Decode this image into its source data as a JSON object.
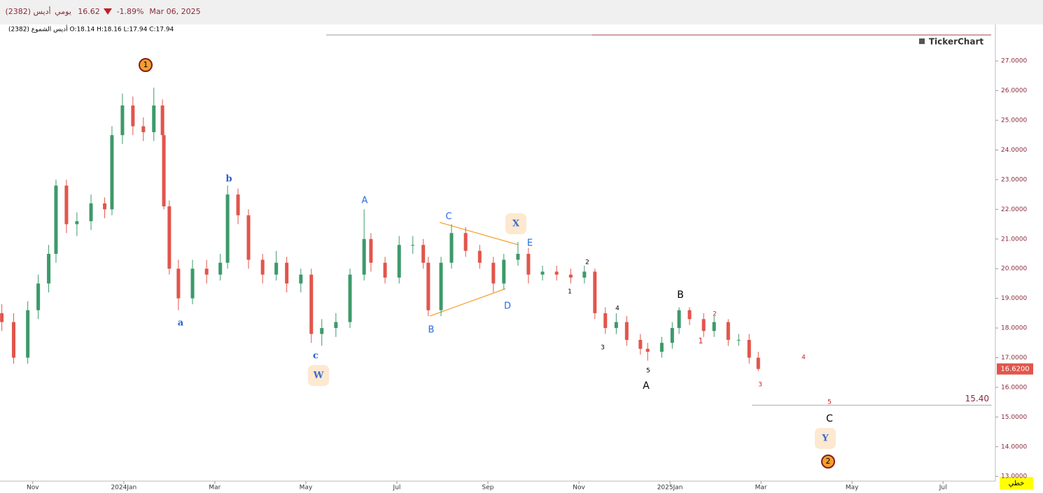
{
  "header": {
    "symbol": "أديس (2382)",
    "period": "يومي",
    "price": "16.62",
    "change": "-1.89%",
    "date": "Mar 06, 2025",
    "ohlc_line": "أديس الشموع (2382) O:18.14 H:18.16 L:17.94 C:17.94",
    "brand": "TickerChart",
    "chart_style": "خطي"
  },
  "chart_data": {
    "type": "candlestick",
    "x": [
      -0.68,
      -0.42,
      -0.11,
      0.12,
      0.35,
      0.51,
      0.74,
      0.97,
      1.28,
      1.58,
      1.74,
      1.97,
      2.2,
      2.43,
      2.66,
      2.85,
      2.88,
      3.0,
      3.2,
      3.51,
      3.82,
      4.12,
      4.28,
      4.51,
      4.74,
      5.05,
      5.35,
      5.58,
      5.89,
      6.12,
      6.35,
      6.66,
      6.97,
      7.28,
      7.43,
      7.74,
      8.05,
      8.35,
      8.58,
      8.69,
      8.97,
      9.2,
      9.51,
      9.82,
      10.12,
      10.35,
      10.66,
      10.89,
      11.2,
      11.51,
      11.82,
      12.12,
      12.35,
      12.58,
      12.82,
      13.05,
      13.35,
      13.51,
      13.82,
      14.05,
      14.2,
      14.43,
      14.74,
      14.97,
      15.28,
      15.51,
      15.74,
      15.94
    ],
    "open": [
      18.5,
      18.2,
      17.0,
      18.6,
      19.5,
      20.5,
      22.8,
      21.5,
      21.6,
      22.2,
      22.0,
      24.5,
      25.5,
      24.8,
      24.6,
      25.5,
      24.5,
      22.1,
      20.0,
      19.0,
      20.0,
      19.8,
      20.2,
      22.5,
      21.8,
      20.3,
      19.8,
      20.2,
      19.5,
      19.8,
      17.8,
      18.0,
      18.2,
      19.8,
      21.0,
      20.2,
      19.7,
      20.8,
      20.8,
      20.2,
      18.6,
      20.2,
      21.2,
      20.6,
      20.2,
      19.5,
      20.3,
      20.5,
      19.8,
      19.9,
      19.8,
      19.7,
      19.9,
      18.5,
      18.0,
      18.2,
      17.6,
      17.3,
      17.2,
      17.5,
      18.0,
      18.6,
      18.3,
      17.9,
      18.2,
      17.6,
      17.6,
      17.0
    ],
    "high": [
      18.8,
      18.5,
      18.9,
      19.8,
      20.8,
      23.0,
      23.0,
      21.9,
      22.5,
      22.4,
      24.8,
      25.9,
      25.8,
      25.1,
      26.1,
      25.7,
      24.6,
      22.3,
      20.3,
      20.3,
      20.3,
      20.5,
      22.8,
      22.7,
      22.0,
      20.5,
      20.6,
      20.4,
      20.0,
      20.0,
      18.3,
      18.5,
      20.0,
      22.0,
      21.2,
      20.4,
      21.1,
      21.1,
      21.0,
      20.4,
      20.4,
      21.5,
      21.4,
      20.8,
      20.4,
      20.5,
      20.9,
      20.7,
      20.1,
      20.1,
      20.0,
      20.1,
      20.0,
      18.7,
      18.5,
      18.4,
      17.8,
      17.5,
      17.7,
      18.2,
      18.7,
      18.7,
      18.5,
      18.4,
      18.3,
      17.8,
      17.8,
      17.2
    ],
    "low": [
      17.9,
      16.8,
      16.8,
      18.3,
      19.2,
      20.2,
      21.2,
      21.1,
      21.3,
      21.7,
      21.8,
      24.2,
      24.5,
      24.3,
      24.3,
      24.3,
      22.0,
      19.8,
      18.6,
      18.8,
      19.5,
      19.6,
      20.0,
      21.5,
      20.0,
      19.5,
      19.6,
      19.2,
      19.2,
      17.5,
      17.4,
      17.7,
      18.0,
      19.6,
      19.9,
      19.5,
      19.5,
      20.5,
      20.0,
      18.4,
      18.4,
      20.0,
      20.4,
      20.0,
      19.2,
      19.3,
      20.1,
      19.5,
      19.6,
      19.6,
      19.5,
      19.5,
      18.3,
      17.8,
      17.8,
      17.4,
      17.1,
      16.9,
      17.0,
      17.3,
      17.8,
      18.1,
      17.7,
      17.7,
      17.4,
      17.4,
      16.8,
      16.55
    ],
    "close": [
      18.2,
      17.0,
      18.6,
      19.5,
      20.5,
      22.8,
      21.5,
      21.6,
      22.2,
      22.0,
      24.5,
      25.5,
      24.8,
      24.6,
      25.5,
      24.5,
      22.1,
      20.0,
      19.0,
      20.0,
      19.8,
      20.2,
      22.5,
      21.8,
      20.3,
      19.8,
      20.2,
      19.5,
      19.8,
      17.8,
      18.0,
      18.2,
      19.8,
      21.0,
      20.2,
      19.7,
      20.8,
      20.8,
      20.2,
      18.6,
      20.2,
      21.2,
      20.6,
      20.2,
      19.5,
      20.3,
      20.5,
      19.8,
      19.9,
      19.8,
      19.7,
      19.9,
      18.5,
      18.0,
      18.2,
      17.6,
      17.3,
      17.2,
      17.5,
      18.0,
      18.6,
      18.3,
      17.9,
      18.2,
      17.6,
      17.6,
      17.0,
      16.62
    ],
    "up_color": "#3d9a6a",
    "down_color": "#e2554b",
    "xlim": [
      -0.72,
      21.15
    ],
    "xticks": [
      {
        "value": 0,
        "label": "Nov"
      },
      {
        "value": 2,
        "label": "2024Jan"
      },
      {
        "value": 4,
        "label": "Mar"
      },
      {
        "value": 6,
        "label": "May"
      },
      {
        "value": 8,
        "label": "Jul"
      },
      {
        "value": 10,
        "label": "Sep"
      },
      {
        "value": 12,
        "label": "Nov"
      },
      {
        "value": 14,
        "label": "2025Jan"
      },
      {
        "value": 16,
        "label": "Mar"
      },
      {
        "value": 18,
        "label": "May"
      },
      {
        "value": 20,
        "label": "Jul"
      }
    ],
    "ylim": [
      12.84,
      28.23
    ],
    "yticks": [
      {
        "value": 13,
        "label": "13.0000"
      },
      {
        "value": 14,
        "label": "14.0000"
      },
      {
        "value": 15,
        "label": "15.0000"
      },
      {
        "value": 16,
        "label": "16.0000"
      },
      {
        "value": 17,
        "label": "17.0000"
      },
      {
        "value": 18,
        "label": "18.0000"
      },
      {
        "value": 19,
        "label": "19.0000"
      },
      {
        "value": 20,
        "label": "20.0000"
      },
      {
        "value": 21,
        "label": "21.0000"
      },
      {
        "value": 22,
        "label": "22.0000"
      },
      {
        "value": 23,
        "label": "23.0000"
      },
      {
        "value": 24,
        "label": "24.0000"
      },
      {
        "value": 25,
        "label": "25.0000"
      },
      {
        "value": 26,
        "label": "26.0000"
      },
      {
        "value": 27,
        "label": "27.0000"
      }
    ],
    "last_price": {
      "value": 16.62,
      "label": "16.6200"
    },
    "target_level": {
      "value": 15.4,
      "label": "15.40"
    },
    "annotations": [
      {
        "text": "1",
        "style": "circle"
      },
      {
        "text": "2",
        "style": "circle"
      },
      {
        "text": "a",
        "style": "serif"
      },
      {
        "text": "b",
        "style": "serif"
      },
      {
        "text": "c",
        "style": "serif"
      },
      {
        "text": "A",
        "style": "blue"
      },
      {
        "text": "B",
        "style": "blue"
      },
      {
        "text": "C",
        "style": "blue"
      },
      {
        "text": "D",
        "style": "blue"
      },
      {
        "text": "E",
        "style": "blue"
      },
      {
        "text": "W",
        "style": "box"
      },
      {
        "text": "X",
        "style": "box"
      },
      {
        "text": "Y",
        "style": "box"
      },
      {
        "text": "A",
        "style": "big"
      },
      {
        "text": "B",
        "style": "big"
      },
      {
        "text": "C",
        "style": "big"
      },
      {
        "text": "1",
        "style": "small"
      },
      {
        "text": "2",
        "style": "small"
      },
      {
        "text": "3",
        "style": "small"
      },
      {
        "text": "4",
        "style": "small"
      },
      {
        "text": "5",
        "style": "small"
      },
      {
        "text": "1",
        "style": "red"
      },
      {
        "text": "2",
        "style": "redsmall"
      },
      {
        "text": "3",
        "style": "redsmall"
      },
      {
        "text": "4",
        "style": "redsmall"
      },
      {
        "text": "5",
        "style": "redsmall"
      }
    ]
  }
}
